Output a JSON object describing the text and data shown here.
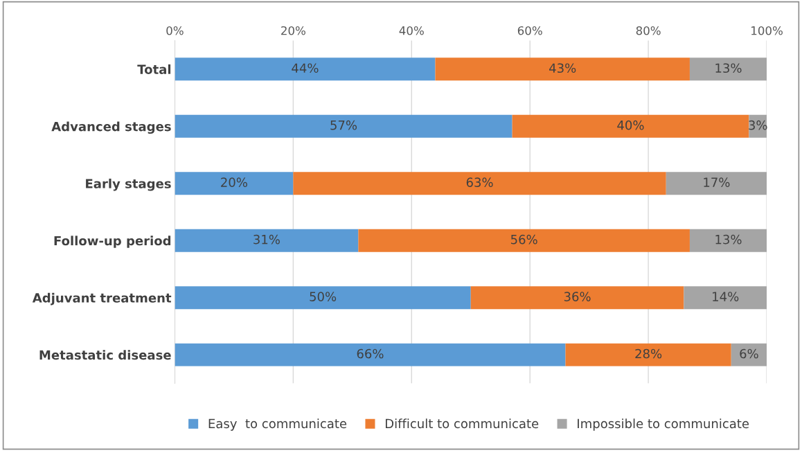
{
  "chart_data": {
    "type": "bar",
    "orientation": "horizontal",
    "stacked": true,
    "categories": [
      "Total",
      "Advanced stages",
      "Early stages",
      "Follow-up period",
      "Adjuvant treatment",
      "Metastatic disease"
    ],
    "series": [
      {
        "name": "Easy  to communicate",
        "color": "#5b9bd5",
        "values": [
          44,
          57,
          20,
          31,
          50,
          66
        ],
        "value_labels": [
          "44%",
          "57%",
          "20%",
          "31%",
          "50%",
          "66%"
        ]
      },
      {
        "name": "Difficult to communicate",
        "color": "#ed7d31",
        "values": [
          43,
          40,
          63,
          56,
          36,
          28
        ],
        "value_labels": [
          "43%",
          "40%",
          "63%",
          "56%",
          "36%",
          "28%"
        ]
      },
      {
        "name": "Impossible to communicate",
        "color": "#a5a5a5",
        "values": [
          13,
          3,
          17,
          13,
          14,
          6
        ],
        "value_labels": [
          "13%",
          "3%",
          "17%",
          "13%",
          "14%",
          "6%"
        ]
      }
    ],
    "xlim": [
      0,
      100
    ],
    "xticks": [
      {
        "value": 0,
        "label": "0%"
      },
      {
        "value": 20,
        "label": "20%"
      },
      {
        "value": 40,
        "label": "40%"
      },
      {
        "value": 60,
        "label": "60%"
      },
      {
        "value": 80,
        "label": "80%"
      },
      {
        "value": 100,
        "label": "100%"
      }
    ],
    "grid": "x",
    "legend": "bottom"
  }
}
